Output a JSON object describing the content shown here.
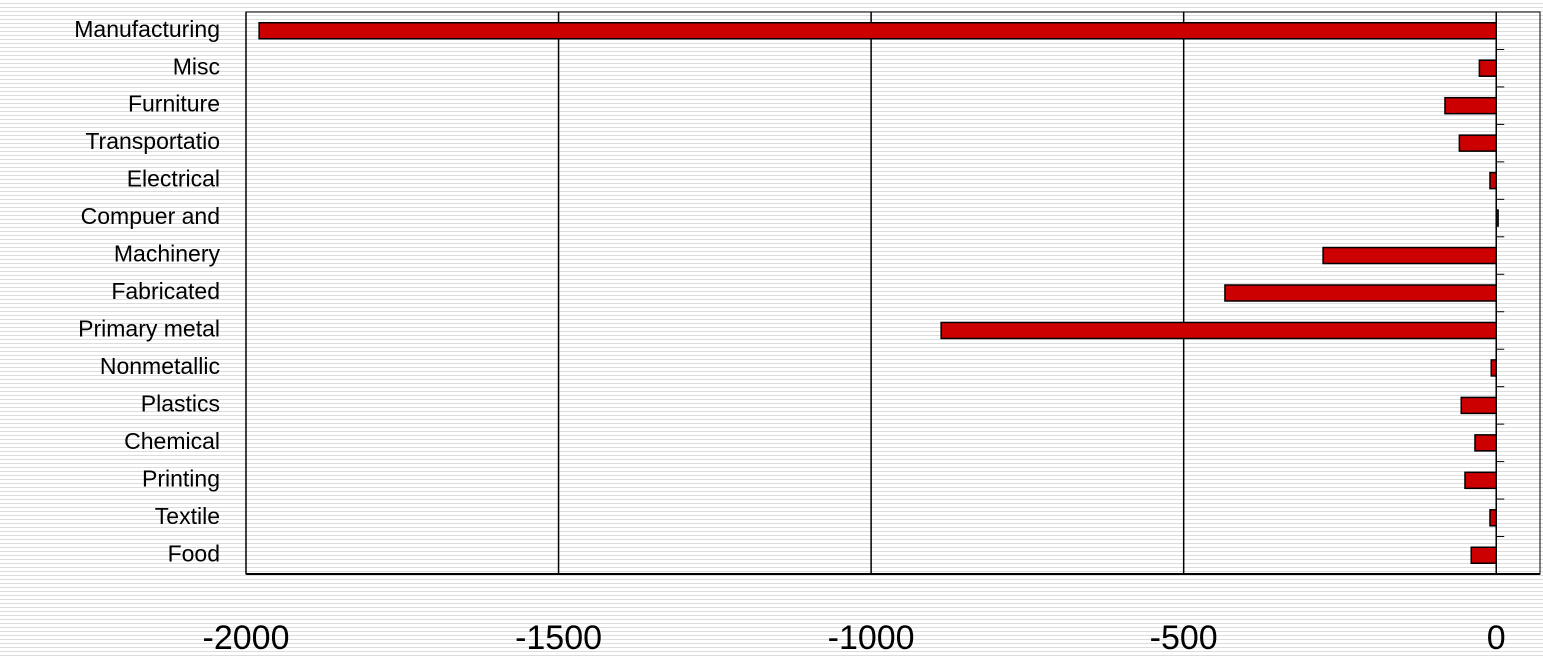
{
  "chart_data": {
    "type": "bar",
    "orientation": "horizontal",
    "categories": [
      "Manufacturing",
      "Misc",
      "Furniture",
      "Transportatio",
      "Electrical",
      "Compuer and",
      "Machinery",
      "Fabricated",
      "Primary metal",
      "Nonmetallic",
      "Plastics",
      "Chemical",
      "Printing",
      "Textile",
      "Food"
    ],
    "values": [
      -1979,
      -27,
      -82,
      -59,
      -10,
      3,
      -277,
      -434,
      -888,
      -8,
      -56,
      -34,
      -50,
      -10,
      -40
    ],
    "color": "#cc0000",
    "xlim": [
      -2000,
      70
    ],
    "xticks": [
      -2000,
      -1500,
      -1000,
      -500,
      0
    ],
    "grid": true
  }
}
